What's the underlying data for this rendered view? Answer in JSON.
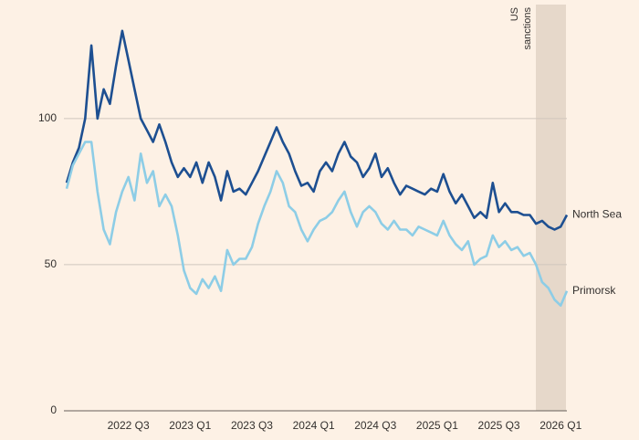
{
  "chart_data": {
    "type": "line",
    "annotation": [
      "US",
      "sanctions"
    ],
    "categories": [
      null,
      null,
      null,
      null,
      null,
      null,
      null,
      null,
      null,
      null,
      "2022 Q3",
      null,
      null,
      null,
      null,
      null,
      null,
      null,
      null,
      null,
      "2023 Q1",
      null,
      null,
      null,
      null,
      null,
      null,
      null,
      null,
      null,
      "2023 Q3",
      null,
      null,
      null,
      null,
      null,
      null,
      null,
      null,
      null,
      "2024 Q1",
      null,
      null,
      null,
      null,
      null,
      null,
      null,
      null,
      null,
      "2024 Q3",
      null,
      null,
      null,
      null,
      null,
      null,
      null,
      null,
      null,
      "2025 Q1",
      null,
      null,
      null,
      null,
      null,
      null,
      null,
      null,
      null,
      "2025 Q3",
      null,
      null,
      null,
      null,
      null,
      null,
      null,
      null,
      null,
      "2026 Q1",
      null
    ],
    "series": [
      {
        "name": "North Sea",
        "color": "#1d4f91",
        "values": [
          78,
          85,
          90,
          100,
          125,
          100,
          110,
          105,
          118,
          130,
          120,
          110,
          100,
          96,
          92,
          98,
          92,
          85,
          80,
          83,
          80,
          85,
          78,
          85,
          80,
          72,
          82,
          75,
          76,
          74,
          78,
          82,
          87,
          92,
          97,
          92,
          88,
          82,
          77,
          78,
          75,
          82,
          85,
          82,
          88,
          92,
          87,
          85,
          80,
          83,
          88,
          80,
          83,
          78,
          74,
          77,
          76,
          75,
          74,
          76,
          75,
          81,
          75,
          71,
          74,
          70,
          66,
          68,
          66,
          78,
          68,
          71,
          68,
          68,
          67,
          67,
          64,
          65,
          63,
          62,
          63,
          67
        ]
      },
      {
        "name": "Primorsk",
        "color": "#8dcde6",
        "values": [
          76,
          84,
          88,
          92,
          92,
          75,
          62,
          57,
          68,
          75,
          80,
          72,
          88,
          78,
          82,
          70,
          74,
          70,
          60,
          48,
          42,
          40,
          45,
          42,
          46,
          41,
          55,
          50,
          52,
          52,
          56,
          64,
          70,
          75,
          82,
          78,
          70,
          68,
          62,
          58,
          62,
          65,
          66,
          68,
          72,
          75,
          68,
          63,
          68,
          70,
          68,
          64,
          62,
          65,
          62,
          62,
          60,
          63,
          62,
          61,
          60,
          65,
          60,
          57,
          55,
          58,
          50,
          52,
          53,
          60,
          56,
          58,
          55,
          56,
          53,
          54,
          50,
          44,
          42,
          38,
          36,
          41
        ]
      }
    ],
    "ylim": [
      0,
      139
    ],
    "yticks": [
      0,
      50,
      100
    ],
    "grid": true
  }
}
